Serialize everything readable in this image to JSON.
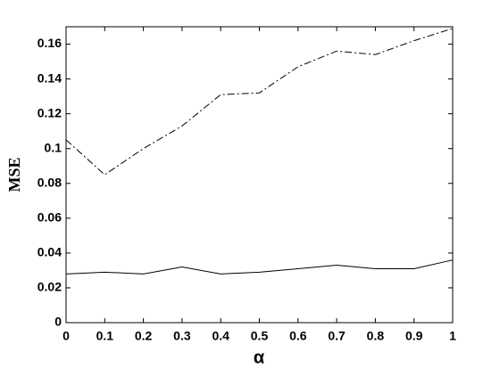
{
  "chart_data": {
    "type": "line",
    "xlabel": "α",
    "ylabel": "MSE",
    "x": [
      0,
      0.1,
      0.2,
      0.3,
      0.4,
      0.5,
      0.6,
      0.7,
      0.8,
      0.9,
      1
    ],
    "series": [
      {
        "color": "#000000",
        "linestyle": "dashdot",
        "values": [
          0.105,
          0.085,
          0.1,
          0.113,
          0.131,
          0.132,
          0.147,
          0.156,
          0.154,
          0.162,
          0.169
        ]
      },
      {
        "color": "#000000",
        "linestyle": "solid",
        "values": [
          0.028,
          0.029,
          0.028,
          0.032,
          0.028,
          0.029,
          0.031,
          0.033,
          0.031,
          0.031,
          0.036
        ]
      }
    ],
    "xlim": [
      0,
      1
    ],
    "xticks": [
      0,
      0.1,
      0.2,
      0.3,
      0.4,
      0.5,
      0.6,
      0.7,
      0.8,
      0.9,
      1
    ],
    "ylim": [
      0,
      0.17
    ],
    "yticks": [
      0,
      0.02,
      0.04,
      0.06,
      0.08,
      0.1,
      0.12,
      0.14,
      0.16
    ],
    "grid": false
  }
}
